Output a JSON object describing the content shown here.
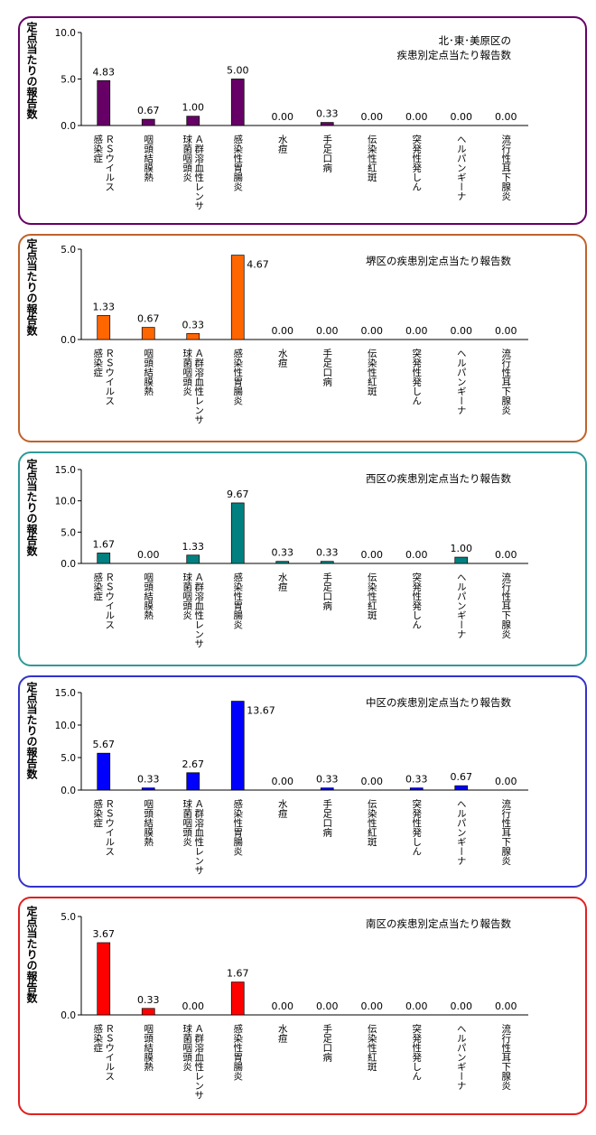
{
  "y_axis_label": "定点当たりの報告数",
  "categories": [
    "ＲＳウイルス感染症",
    "咽頭結膜熱",
    "Ａ群溶血性レンサ球菌咽頭炎",
    "感染性胃腸炎",
    "水痘",
    "手足口病",
    "伝染性紅斑",
    "突発性発しん",
    "ヘルパンギーナ",
    "流行性耳下腺炎"
  ],
  "category_lines": [
    [
      "ＲＳウイルス",
      "感染症"
    ],
    [
      "咽頭結膜熱"
    ],
    [
      "Ａ群溶血性レンサ",
      "球菌咽頭炎"
    ],
    [
      "感染性胃腸炎"
    ],
    [
      "水痘"
    ],
    [
      "手足口病"
    ],
    [
      "伝染性紅斑"
    ],
    [
      "突発性発しん"
    ],
    [
      "ヘルパンギーナ"
    ],
    [
      "流行性耳下腺炎"
    ]
  ],
  "chart_data": [
    {
      "type": "bar",
      "title": "北･東･美原区の疾患別定点当たり報告数",
      "title_lines": [
        "北･東･美原区の",
        "疾患別定点当たり報告数"
      ],
      "ylabel": "定点当たりの報告数",
      "ylim": [
        0,
        10
      ],
      "yticks": [
        "0.0",
        "5.0",
        "10.0"
      ],
      "color": "#660066",
      "border_color": "#660066",
      "values": [
        4.83,
        0.67,
        1.0,
        5.0,
        0.0,
        0.33,
        0.0,
        0.0,
        0.0,
        0.0
      ],
      "labels": [
        "4.83",
        "0.67",
        "1.00",
        "5.00",
        "0.00",
        "0.33",
        "0.00",
        "0.00",
        "0.00",
        "0.00"
      ]
    },
    {
      "type": "bar",
      "title": "堺区の疾患別定点当たり報告数",
      "title_lines": [
        "堺区の疾患別定点当たり報告数"
      ],
      "ylabel": "定点当たりの報告数",
      "ylim": [
        0,
        5
      ],
      "yticks": [
        "0.0",
        "5.0"
      ],
      "color": "#ff6600",
      "border_color": "#c0622a",
      "values": [
        1.33,
        0.67,
        0.33,
        4.67,
        0.0,
        0.0,
        0.0,
        0.0,
        0.0,
        0.0
      ],
      "labels": [
        "1.33",
        "0.67",
        "0.33",
        "4.67",
        "0.00",
        "0.00",
        "0.00",
        "0.00",
        "0.00",
        "0.00"
      ]
    },
    {
      "type": "bar",
      "title": "西区の疾患別定点当たり報告数",
      "title_lines": [
        "西区の疾患別定点当たり報告数"
      ],
      "ylabel": "定点当たりの報告数",
      "ylim": [
        0,
        15
      ],
      "yticks": [
        "0.0",
        "5.0",
        "10.0",
        "15.0"
      ],
      "color": "#008080",
      "border_color": "#2e9a9a",
      "values": [
        1.67,
        0.0,
        1.33,
        9.67,
        0.33,
        0.33,
        0.0,
        0.0,
        1.0,
        0.0
      ],
      "labels": [
        "1.67",
        "0.00",
        "1.33",
        "9.67",
        "0.33",
        "0.33",
        "0.00",
        "0.00",
        "1.00",
        "0.00"
      ]
    },
    {
      "type": "bar",
      "title": "中区の疾患別定点当たり報告数",
      "title_lines": [
        "中区の疾患別定点当たり報告数"
      ],
      "ylabel": "定点当たりの報告数",
      "ylim": [
        0,
        15
      ],
      "yticks": [
        "0.0",
        "5.0",
        "10.0",
        "15.0"
      ],
      "color": "#0000ff",
      "border_color": "#3333cc",
      "values": [
        5.67,
        0.33,
        2.67,
        13.67,
        0.0,
        0.33,
        0.0,
        0.33,
        0.67,
        0.0
      ],
      "labels": [
        "5.67",
        "0.33",
        "2.67",
        "13.67",
        "0.00",
        "0.33",
        "0.00",
        "0.33",
        "0.67",
        "0.00"
      ]
    },
    {
      "type": "bar",
      "title": "南区の疾患別定点当たり報告数",
      "title_lines": [
        "南区の疾患別定点当たり報告数"
      ],
      "ylabel": "定点当たりの報告数",
      "ylim": [
        0,
        5
      ],
      "yticks": [
        "0.0",
        "5.0"
      ],
      "color": "#ff0000",
      "border_color": "#e02020",
      "values": [
        3.67,
        0.33,
        0.0,
        1.67,
        0.0,
        0.0,
        0.0,
        0.0,
        0.0,
        0.0
      ],
      "labels": [
        "3.67",
        "0.33",
        "0.00",
        "1.67",
        "0.00",
        "0.00",
        "0.00",
        "0.00",
        "0.00",
        "0.00"
      ]
    }
  ]
}
